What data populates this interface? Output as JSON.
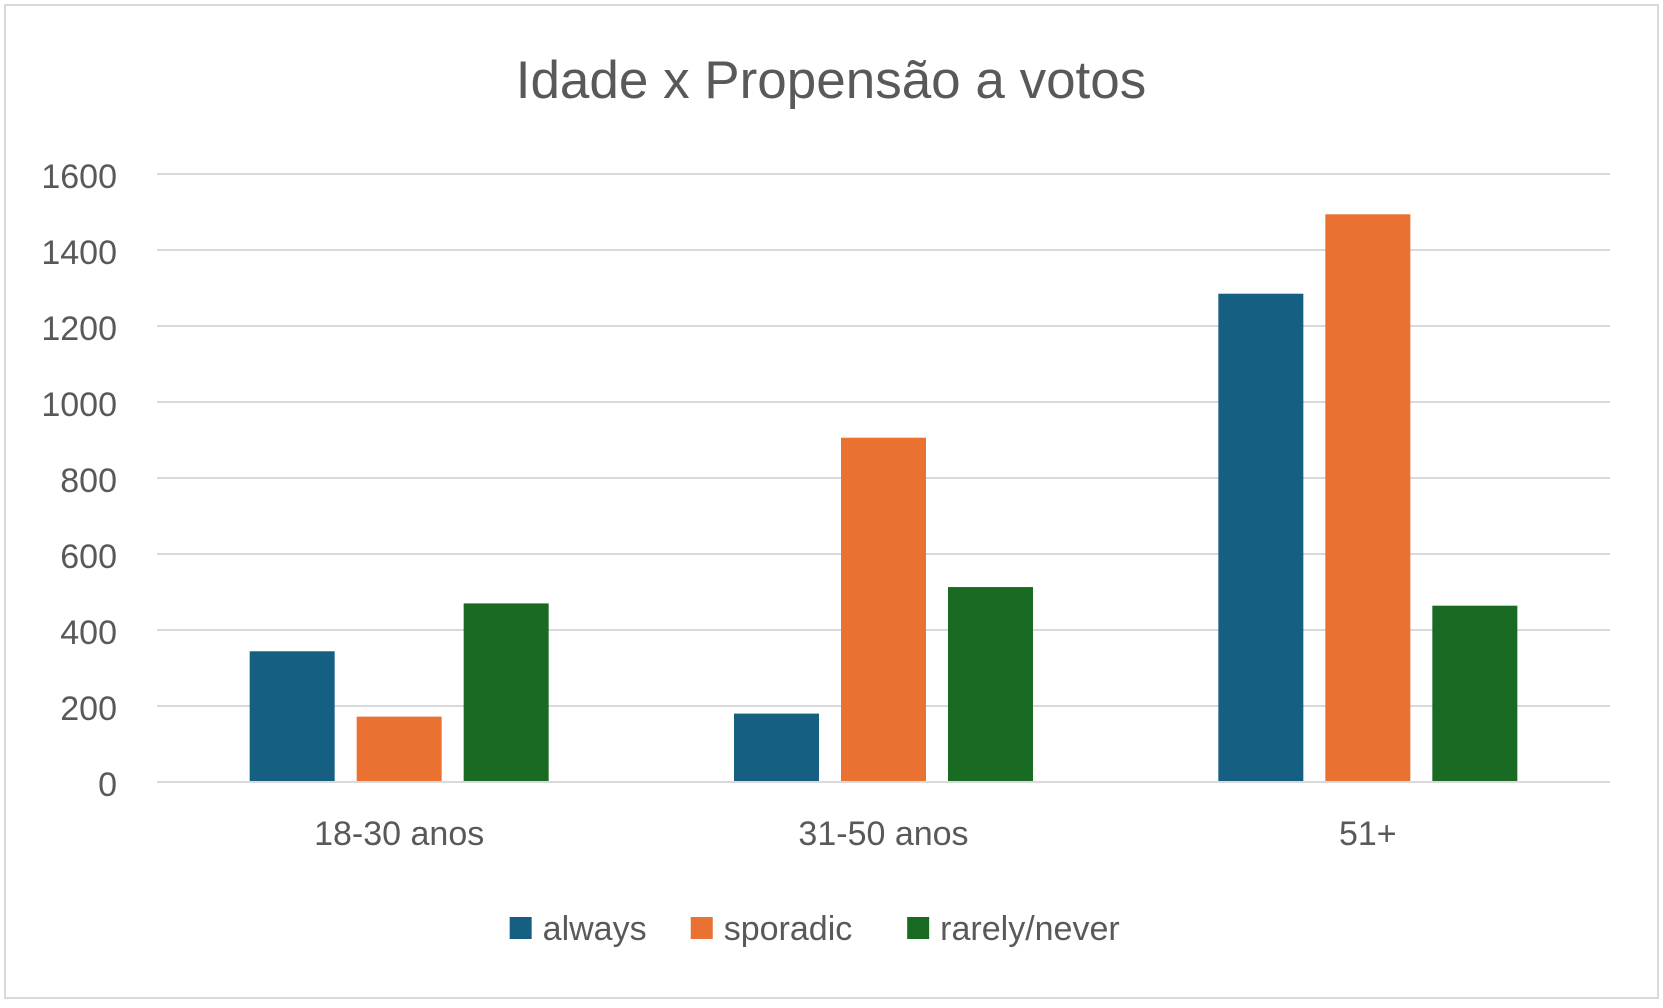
{
  "chart_data": {
    "type": "bar",
    "title": "Idade x Propensão a votos",
    "xlabel": "",
    "ylabel": "",
    "categories": [
      "18-30 anos",
      "31-50 anos",
      "51+"
    ],
    "series": [
      {
        "name": "always",
        "color": "#156082",
        "values": [
          344,
          180,
          1285
        ]
      },
      {
        "name": "sporadic",
        "color": "#E97132",
        "values": [
          172,
          906,
          1494
        ]
      },
      {
        "name": "rarely/never",
        "color": "#196B24",
        "values": [
          470,
          513,
          464
        ]
      }
    ],
    "ylim": [
      0,
      1600
    ],
    "yticks": [
      0,
      200,
      400,
      600,
      800,
      1000,
      1200,
      1400,
      1600
    ],
    "grid": true,
    "legend_position": "bottom"
  }
}
